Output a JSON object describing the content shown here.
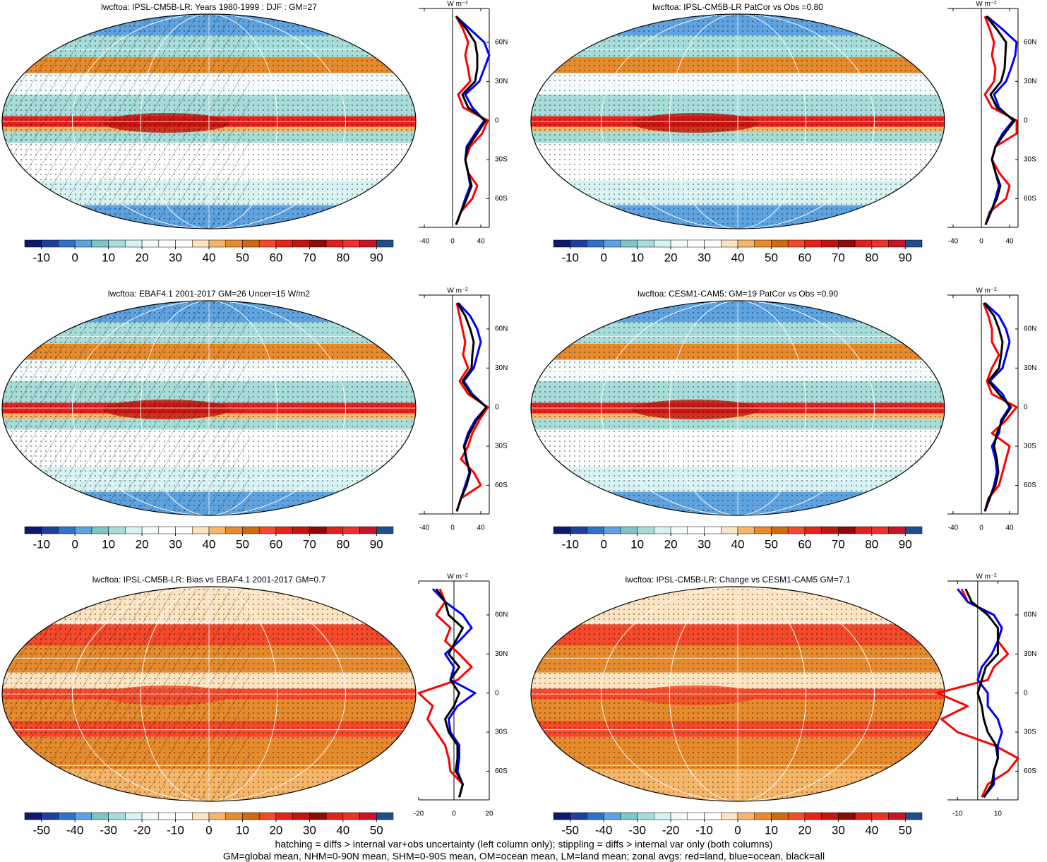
{
  "chart_data": [
    {
      "type": "map",
      "title": "lwcftoa: IPSL-CM5B-LR: Years 1980-1999 : DJF : GM=27",
      "colors": [
        "#0d1a6b",
        "#1f3f9e",
        "#2f73c9",
        "#5ea3e0",
        "#7fc4c9",
        "#a6dcd9",
        "#d6f2f2",
        "#f4fbfb",
        "#ffffff",
        "#ffffff",
        "#fce4c2",
        "#f6b66a",
        "#e68a2e",
        "#cf6a10",
        "#f24a2a",
        "#e8211c",
        "#c2150f",
        "#8c0a08",
        "#e3211c",
        "#f0302a",
        "#c8142b",
        "#1f4e8c"
      ],
      "clim": [
        -15,
        95
      ],
      "cticks": [
        -10,
        0,
        10,
        20,
        30,
        40,
        50,
        60,
        70,
        80,
        90
      ]
    },
    {
      "type": "line",
      "units": "W m⁻²",
      "xlim": [
        -48,
        52
      ],
      "xticks": [
        -40,
        0,
        40
      ],
      "ylim": [
        -82,
        86
      ],
      "yticks": [
        {
          "value": -60,
          "label": "60S"
        },
        {
          "value": -30,
          "label": "30S"
        },
        {
          "value": 0,
          "label": "0"
        },
        {
          "value": 30,
          "label": "30N"
        },
        {
          "value": 60,
          "label": "60N"
        }
      ],
      "y": [
        -80,
        -70,
        -60,
        -50,
        -40,
        -30,
        -20,
        -10,
        0,
        10,
        20,
        30,
        40,
        50,
        60,
        70,
        80
      ],
      "series": [
        {
          "color": "#ff0000",
          "values": [
            5,
            12,
            28,
            35,
            22,
            18,
            25,
            42,
            50,
            15,
            8,
            25,
            22,
            18,
            22,
            15,
            5
          ]
        },
        {
          "color": "#0000ff",
          "values": [
            5,
            12,
            18,
            25,
            22,
            18,
            20,
            32,
            45,
            28,
            18,
            38,
            45,
            52,
            45,
            25,
            5
          ]
        },
        {
          "color": "#000000",
          "values": [
            5,
            12,
            20,
            27,
            22,
            18,
            22,
            35,
            47,
            22,
            14,
            32,
            35,
            35,
            32,
            20,
            5
          ]
        }
      ]
    },
    {
      "type": "map",
      "title": "lwcftoa: IPSL-CM5B-LR PatCor vs Obs =0.80",
      "colors": [
        "#0d1a6b",
        "#1f3f9e",
        "#2f73c9",
        "#5ea3e0",
        "#7fc4c9",
        "#a6dcd9",
        "#d6f2f2",
        "#f4fbfb",
        "#ffffff",
        "#ffffff",
        "#fce4c2",
        "#f6b66a",
        "#e68a2e",
        "#cf6a10",
        "#f24a2a",
        "#e8211c",
        "#c2150f",
        "#8c0a08",
        "#e3211c",
        "#f0302a",
        "#c8142b",
        "#1f4e8c"
      ],
      "clim": [
        -15,
        95
      ],
      "cticks": [
        -10,
        0,
        10,
        20,
        30,
        40,
        50,
        60,
        70,
        80,
        90
      ]
    },
    {
      "type": "line",
      "units": "W m⁻²",
      "xlim": [
        -48,
        52
      ],
      "xticks": [
        -40,
        0,
        40
      ],
      "ylim": [
        -82,
        86
      ],
      "yticks": [
        {
          "value": -60,
          "label": "60S"
        },
        {
          "value": -30,
          "label": "30S"
        },
        {
          "value": 0,
          "label": "0"
        },
        {
          "value": 30,
          "label": "30N"
        },
        {
          "value": 60,
          "label": "60N"
        }
      ],
      "y": [
        -80,
        -70,
        -60,
        -50,
        -40,
        -30,
        -20,
        -10,
        0,
        10,
        20,
        30,
        40,
        50,
        60,
        70,
        80
      ],
      "series": [
        {
          "color": "#ff0000",
          "values": [
            6,
            12,
            35,
            40,
            25,
            15,
            20,
            50,
            50,
            15,
            5,
            18,
            20,
            15,
            18,
            12,
            5
          ]
        },
        {
          "color": "#0000ff",
          "values": [
            6,
            14,
            20,
            25,
            20,
            15,
            20,
            30,
            45,
            25,
            18,
            35,
            42,
            48,
            50,
            30,
            8
          ]
        },
        {
          "color": "#000000",
          "values": [
            6,
            13,
            22,
            27,
            20,
            15,
            20,
            33,
            47,
            22,
            13,
            28,
            33,
            34,
            35,
            22,
            7
          ]
        }
      ]
    },
    {
      "type": "map",
      "title": "lwcftoa: EBAF4.1 2001-2017 GM=26 Uncer=15 W/m2",
      "colors": [
        "#0d1a6b",
        "#1f3f9e",
        "#2f73c9",
        "#5ea3e0",
        "#7fc4c9",
        "#a6dcd9",
        "#d6f2f2",
        "#f4fbfb",
        "#ffffff",
        "#ffffff",
        "#fce4c2",
        "#f6b66a",
        "#e68a2e",
        "#cf6a10",
        "#f24a2a",
        "#e8211c",
        "#c2150f",
        "#8c0a08",
        "#e3211c",
        "#f0302a",
        "#c8142b",
        "#1f4e8c"
      ],
      "clim": [
        -15,
        95
      ],
      "cticks": [
        -10,
        0,
        10,
        20,
        30,
        40,
        50,
        60,
        70,
        80,
        90
      ]
    },
    {
      "type": "line",
      "units": "W m⁻²",
      "xlim": [
        -48,
        52
      ],
      "xticks": [
        -40,
        0,
        40
      ],
      "ylim": [
        -82,
        86
      ],
      "yticks": [
        {
          "value": -60,
          "label": "60S"
        },
        {
          "value": -30,
          "label": "30S"
        },
        {
          "value": 0,
          "label": "0"
        },
        {
          "value": 30,
          "label": "30N"
        },
        {
          "value": 60,
          "label": "60N"
        }
      ],
      "y": [
        -80,
        -70,
        -60,
        -50,
        -40,
        -30,
        -20,
        -10,
        0,
        10,
        20,
        30,
        40,
        50,
        60,
        70,
        80
      ],
      "series": [
        {
          "color": "#ff0000",
          "values": [
            6,
            12,
            40,
            30,
            12,
            22,
            28,
            38,
            50,
            22,
            10,
            22,
            15,
            18,
            14,
            10,
            6
          ]
        },
        {
          "color": "#0000ff",
          "values": [
            6,
            12,
            18,
            24,
            20,
            16,
            22,
            32,
            48,
            28,
            16,
            30,
            35,
            40,
            35,
            25,
            8
          ]
        },
        {
          "color": "#000000",
          "values": [
            6,
            12,
            20,
            25,
            19,
            17,
            24,
            34,
            48,
            26,
            14,
            27,
            28,
            30,
            25,
            18,
            7
          ]
        }
      ]
    },
    {
      "type": "map",
      "title": "lwcftoa: CESM1-CAM5: GM=19 PatCor vs Obs =0.90",
      "colors": [
        "#0d1a6b",
        "#1f3f9e",
        "#2f73c9",
        "#5ea3e0",
        "#7fc4c9",
        "#a6dcd9",
        "#d6f2f2",
        "#f4fbfb",
        "#ffffff",
        "#ffffff",
        "#fce4c2",
        "#f6b66a",
        "#e68a2e",
        "#cf6a10",
        "#f24a2a",
        "#e8211c",
        "#c2150f",
        "#8c0a08",
        "#e3211c",
        "#f0302a",
        "#c8142b",
        "#1f4e8c"
      ],
      "clim": [
        -15,
        95
      ],
      "cticks": [
        -10,
        0,
        10,
        20,
        30,
        40,
        50,
        60,
        70,
        80,
        90
      ]
    },
    {
      "type": "line",
      "units": "W m⁻²",
      "xlim": [
        -48,
        52
      ],
      "xticks": [
        -40,
        0,
        40
      ],
      "ylim": [
        -82,
        86
      ],
      "yticks": [
        {
          "value": -60,
          "label": "60S"
        },
        {
          "value": -30,
          "label": "30S"
        },
        {
          "value": 0,
          "label": "0"
        },
        {
          "value": 30,
          "label": "30N"
        },
        {
          "value": 60,
          "label": "60N"
        }
      ],
      "y": [
        -80,
        -70,
        -60,
        -50,
        -40,
        -30,
        -20,
        -10,
        0,
        10,
        20,
        30,
        40,
        50,
        60,
        70,
        80
      ],
      "series": [
        {
          "color": "#ff0000",
          "values": [
            5,
            10,
            25,
            30,
            35,
            40,
            15,
            35,
            50,
            15,
            8,
            15,
            25,
            15,
            15,
            10,
            3
          ]
        },
        {
          "color": "#0000ff",
          "values": [
            5,
            12,
            18,
            22,
            20,
            15,
            25,
            28,
            40,
            30,
            12,
            30,
            35,
            40,
            35,
            25,
            5
          ]
        },
        {
          "color": "#000000",
          "values": [
            5,
            11,
            20,
            24,
            22,
            18,
            22,
            30,
            42,
            25,
            10,
            25,
            28,
            30,
            25,
            18,
            4
          ]
        }
      ]
    },
    {
      "type": "map",
      "title": "lwcftoa: IPSL-CM5B-LR: Bias vs EBAF4.1 2001-2017 GM=0.7",
      "colors": [
        "#0d1a6b",
        "#1f3f9e",
        "#2f73c9",
        "#5ea3e0",
        "#7fc4c9",
        "#a6dcd9",
        "#d6f2f2",
        "#f4fbfb",
        "#ffffff",
        "#ffffff",
        "#fce4c2",
        "#f6b66a",
        "#e68a2e",
        "#cf6a10",
        "#f24a2a",
        "#e8211c",
        "#c2150f",
        "#8c0a08",
        "#e3211c",
        "#f0302a",
        "#c8142b",
        "#1f4e8c"
      ],
      "clim": [
        -55,
        55
      ],
      "cticks": [
        -50,
        -40,
        -30,
        -20,
        -10,
        0,
        10,
        20,
        30,
        40,
        50
      ]
    },
    {
      "type": "line",
      "units": "W m⁻²",
      "xlim": [
        -20,
        20
      ],
      "xticks": [
        -20,
        0,
        20
      ],
      "ylim": [
        -82,
        86
      ],
      "yticks": [
        {
          "value": -60,
          "label": "60S"
        },
        {
          "value": -30,
          "label": "30S"
        },
        {
          "value": 0,
          "label": "0"
        },
        {
          "value": 30,
          "label": "30N"
        },
        {
          "value": 60,
          "label": "60N"
        }
      ],
      "y": [
        -80,
        -70,
        -60,
        -50,
        -40,
        -30,
        -20,
        -10,
        0,
        10,
        20,
        30,
        40,
        50,
        60,
        70,
        80
      ],
      "series": [
        {
          "color": "#ff0000",
          "values": [
            3,
            5,
            -2,
            -3,
            -5,
            -10,
            -15,
            -12,
            -20,
            2,
            10,
            3,
            -5,
            -2,
            -10,
            -5,
            -8
          ]
        },
        {
          "color": "#0000ff",
          "values": [
            3,
            5,
            2,
            3,
            3,
            -2,
            -3,
            2,
            12,
            -2,
            0,
            -5,
            3,
            10,
            5,
            -5,
            -12
          ]
        },
        {
          "color": "#000000",
          "values": [
            3,
            5,
            1,
            2,
            2,
            -3,
            -5,
            0,
            3,
            -2,
            3,
            -3,
            1,
            5,
            -3,
            -5,
            -10
          ]
        }
      ]
    },
    {
      "type": "map",
      "title": "lwcftoa: IPSL-CM5B-LR: Change vs CESM1-CAM5 GM=7.1",
      "colors": [
        "#0d1a6b",
        "#1f3f9e",
        "#2f73c9",
        "#5ea3e0",
        "#7fc4c9",
        "#a6dcd9",
        "#d6f2f2",
        "#f4fbfb",
        "#ffffff",
        "#ffffff",
        "#fce4c2",
        "#f6b66a",
        "#e68a2e",
        "#cf6a10",
        "#f24a2a",
        "#e8211c",
        "#c2150f",
        "#8c0a08",
        "#e3211c",
        "#f0302a",
        "#c8142b",
        "#1f4e8c"
      ],
      "clim": [
        -55,
        55
      ],
      "cticks": [
        -50,
        -40,
        -30,
        -20,
        -10,
        0,
        10,
        20,
        30,
        40,
        50
      ]
    },
    {
      "type": "line",
      "units": "W m⁻²",
      "xlim": [
        -15,
        20
      ],
      "xticks": [
        -10,
        10
      ],
      "ylim": [
        -82,
        86
      ],
      "yticks": [
        {
          "value": -60,
          "label": "60S"
        },
        {
          "value": -30,
          "label": "30S"
        },
        {
          "value": 0,
          "label": "0"
        },
        {
          "value": 30,
          "label": "30N"
        },
        {
          "value": 60,
          "label": "60N"
        }
      ],
      "y": [
        -80,
        -70,
        -60,
        -50,
        -40,
        -30,
        -20,
        -10,
        0,
        10,
        20,
        30,
        40,
        50,
        60,
        70,
        80
      ],
      "series": [
        {
          "color": "#ff0000",
          "values": [
            2,
            5,
            15,
            20,
            8,
            -10,
            -18,
            -5,
            -20,
            5,
            8,
            15,
            10,
            12,
            8,
            -5,
            -8
          ]
        },
        {
          "color": "#0000ff",
          "values": [
            3,
            8,
            8,
            10,
            10,
            12,
            10,
            5,
            5,
            0,
            2,
            7,
            10,
            12,
            8,
            -5,
            -10
          ]
        },
        {
          "color": "#000000",
          "values": [
            3,
            7,
            8,
            10,
            9,
            5,
            3,
            2,
            0,
            2,
            4,
            10,
            10,
            10,
            5,
            -3,
            -6
          ]
        }
      ]
    }
  ],
  "footnote": [
    "hatching = diffs > internal var+obs uncertainty (left column only); stippling = diffs > internal var only (both columns)",
    "GM=global mean, NHM=0-90N mean, SHM=0-90S mean, OM=ocean mean, LM=land mean; zonal avgs: red=land, blue=ocean, black=all"
  ]
}
